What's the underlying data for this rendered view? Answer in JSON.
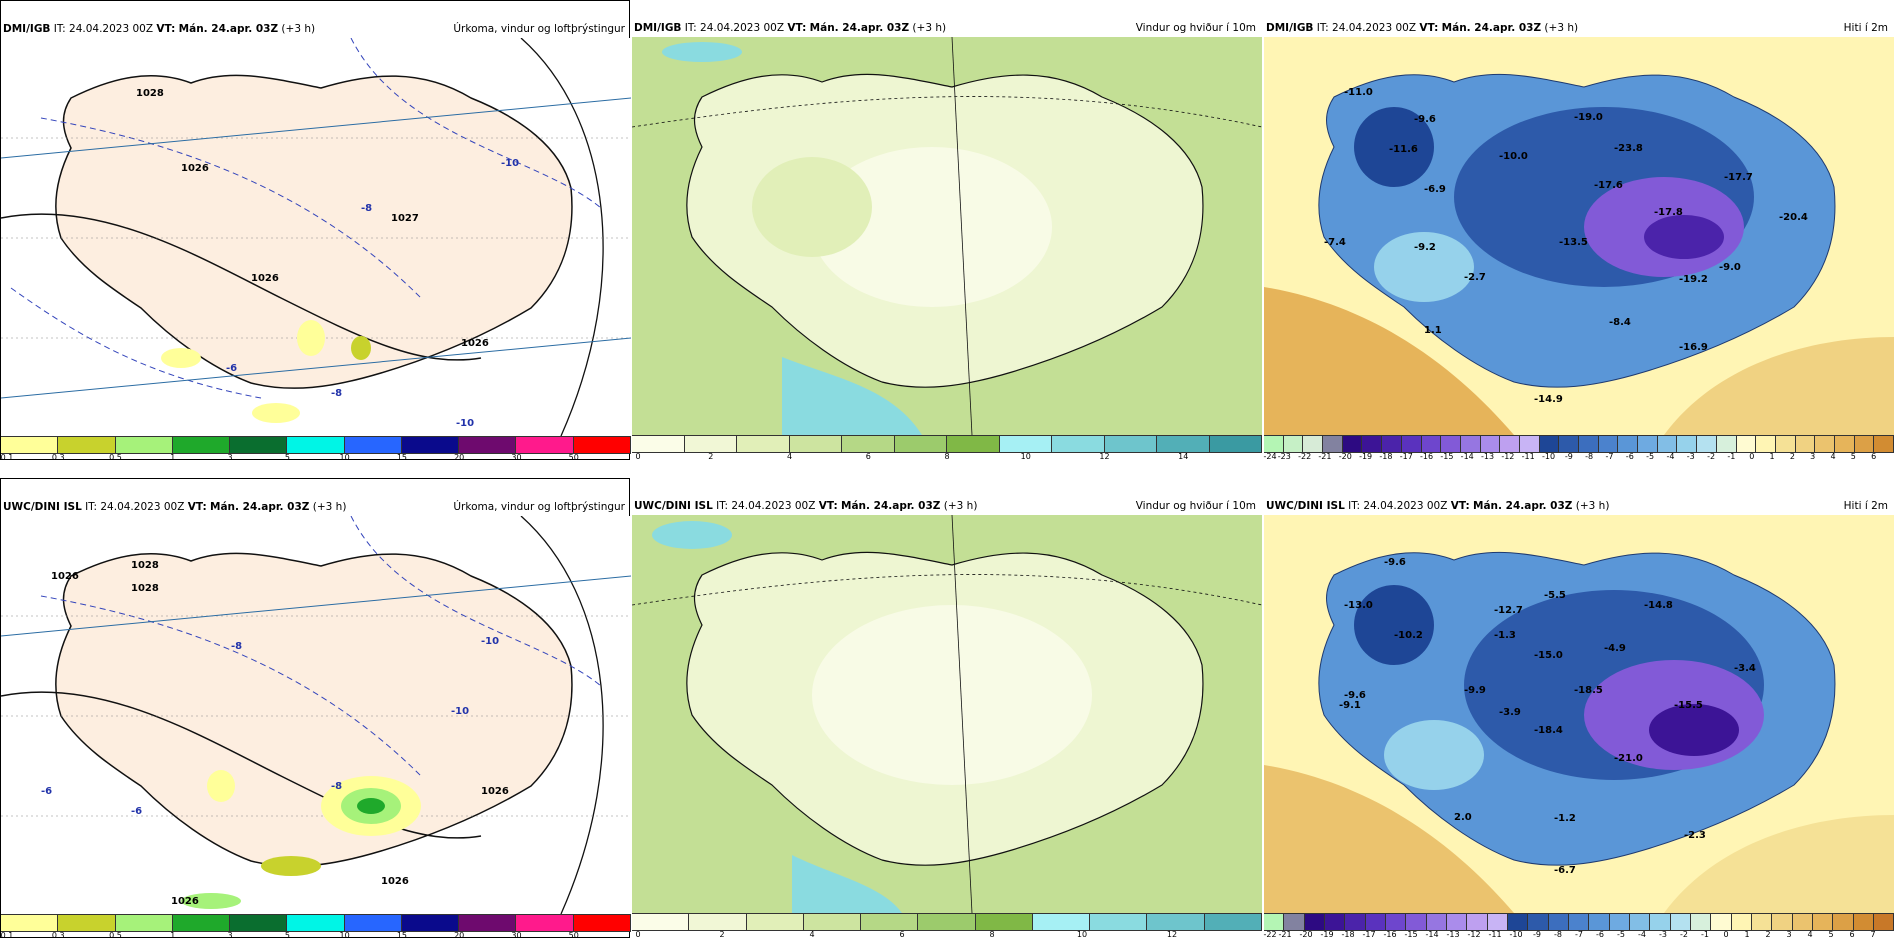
{
  "panels": [
    {
      "id": "p1",
      "model": "DMI/IGB",
      "it_label": "IT:",
      "it_value": "24.04.2023 00Z",
      "vt_label": "VT:",
      "vt_value": "Mán. 24.apr. 03Z",
      "lead": "(+3 h)",
      "product": "Úrkoma, vindur og loftþrýstingur",
      "scale_colors": [
        "#ffff99",
        "#c8d22d",
        "#a6f27a",
        "#1fa92b",
        "#0a6e2f",
        "#00f5e6",
        "#2766ff",
        "#0a0a8c",
        "#6e0a6e",
        "#ff1a8c",
        "#ff0000"
      ],
      "scale_labels": [
        "0.1",
        "0.3",
        "0.5",
        "1",
        "3",
        "5",
        "10",
        "15",
        "20",
        "30",
        "50"
      ],
      "map_labels": [
        "1028",
        "1027",
        "-8",
        "-10",
        "-10",
        "-6",
        "-8",
        "1026",
        "1026",
        "1026"
      ]
    },
    {
      "id": "p2",
      "model": "DMI/IGB",
      "it_label": "IT:",
      "it_value": "24.04.2023 00Z",
      "vt_label": "VT:",
      "vt_value": "Mán. 24.apr. 03Z",
      "lead": "(+3 h)",
      "product": "Vindur og hviður í 10m",
      "scale_colors": [
        "#fbfde8",
        "#f1f7d6",
        "#e1efb8",
        "#cde4a0",
        "#b5d886",
        "#9ccb6c",
        "#80b846",
        "#a6f0f4",
        "#8adbe0",
        "#6ec5cc",
        "#52afb7",
        "#3a9aa2"
      ],
      "scale_labels": [
        "0",
        "2",
        "4",
        "6",
        "8",
        "10",
        "12",
        "14"
      ],
      "map_labels": []
    },
    {
      "id": "p3",
      "model": "DMI/IGB",
      "it_label": "IT:",
      "it_value": "24.04.2023 00Z",
      "vt_label": "VT:",
      "vt_value": "Mán. 24.apr. 03Z",
      "lead": "(+3 h)",
      "product": "Hiti í 2m",
      "scale_colors": [
        "#b4f5b4",
        "#c6f0c6",
        "#d7ebd7",
        "#8282a0",
        "#2d0a82",
        "#3c1496",
        "#4b23aa",
        "#5a32be",
        "#6e46cd",
        "#825ad7",
        "#9676e1",
        "#aa8ceb",
        "#bea0f0",
        "#c8b4f5",
        "#1e4696",
        "#2d5aaa",
        "#3c6ebe",
        "#4b82cd",
        "#5a96d7",
        "#6eaae1",
        "#82bee6",
        "#96d2eb",
        "#b4e1f0",
        "#d7f0dc",
        "#fffbd2",
        "#fff5b4",
        "#f5e196",
        "#f0d282",
        "#ebc36e",
        "#e6b45a",
        "#dca046",
        "#d28c32"
      ],
      "scale_labels": [
        "-24",
        "-23",
        "-22",
        "-21",
        "-20",
        "-19",
        "-18",
        "-17",
        "-16",
        "-15",
        "-14",
        "-13",
        "-12",
        "-11",
        "-10",
        "-9",
        "-8",
        "-7",
        "-6",
        "-5",
        "-4",
        "-3",
        "-2",
        "-1",
        "0",
        "1",
        "2",
        "3",
        "4",
        "5",
        "6"
      ],
      "map_labels": [
        "-11.0",
        "-9.6",
        "-11.6",
        "-6.9",
        "-10.0",
        "-19.0",
        "-23.8",
        "-17.6",
        "-17.7",
        "-17.8",
        "-20.4",
        "-7.4",
        "-9.2",
        "-13.5",
        "-2.7",
        "-19.2",
        "-9.0",
        "-8.4",
        "1.1",
        "-16.9",
        "-14.9"
      ]
    },
    {
      "id": "p4",
      "model": "UWC/DINI ISL",
      "it_label": "IT:",
      "it_value": "24.04.2023 00Z",
      "vt_label": "VT:",
      "vt_value": "Mán. 24.apr. 03Z",
      "lead": "(+3 h)",
      "product": "Úrkoma, vindur og loftþrýstingur",
      "scale_colors": [
        "#ffff99",
        "#c8d22d",
        "#a6f27a",
        "#1fa92b",
        "#0a6e2f",
        "#00f5e6",
        "#2766ff",
        "#0a0a8c",
        "#6e0a6e",
        "#ff1a8c",
        "#ff0000"
      ],
      "scale_labels": [
        "0.1",
        "0.3",
        "0.5",
        "1",
        "3",
        "5",
        "10",
        "15",
        "20",
        "30",
        "50"
      ],
      "map_labels": [
        "1026",
        "1028",
        "1028",
        "-8",
        "-10",
        "-10",
        "-6",
        "-8",
        "1026",
        "1026",
        "1026",
        "-6"
      ]
    },
    {
      "id": "p5",
      "model": "UWC/DINI ISL",
      "it_label": "IT:",
      "it_value": "24.04.2023 00Z",
      "vt_label": "VT:",
      "vt_value": "Mán. 24.apr. 03Z",
      "lead": "(+3 h)",
      "product": "Vindur og hviður í 10m",
      "scale_colors": [
        "#fbfde8",
        "#f1f7d6",
        "#e1efb8",
        "#cde4a0",
        "#b5d886",
        "#9ccb6c",
        "#80b846",
        "#a6f0f4",
        "#8adbe0",
        "#6ec5cc",
        "#52afb7"
      ],
      "scale_labels": [
        "0",
        "2",
        "4",
        "6",
        "8",
        "10",
        "12"
      ],
      "map_labels": []
    },
    {
      "id": "p6",
      "model": "UWC/DINI ISL",
      "it_label": "IT:",
      "it_value": "24.04.2023 00Z",
      "vt_label": "VT:",
      "vt_value": "Mán. 24.apr. 03Z",
      "lead": "(+3 h)",
      "product": "Hiti í 2m",
      "scale_colors": [
        "#b4f5b4",
        "#8282a0",
        "#2d0a82",
        "#3c1496",
        "#4b23aa",
        "#5a32be",
        "#6e46cd",
        "#825ad7",
        "#9676e1",
        "#aa8ceb",
        "#bea0f0",
        "#c8b4f5",
        "#1e4696",
        "#2d5aaa",
        "#3c6ebe",
        "#4b82cd",
        "#5a96d7",
        "#6eaae1",
        "#82bee6",
        "#96d2eb",
        "#b4e1f0",
        "#d7f0dc",
        "#fffbd2",
        "#fff5b4",
        "#f5e196",
        "#f0d282",
        "#ebc36e",
        "#e6b45a",
        "#dca046",
        "#d28c32",
        "#c87828"
      ],
      "scale_labels": [
        "-22",
        "-21",
        "-20",
        "-19",
        "-18",
        "-17",
        "-16",
        "-15",
        "-14",
        "-13",
        "-12",
        "-11",
        "-10",
        "-9",
        "-8",
        "-7",
        "-6",
        "-5",
        "-4",
        "-3",
        "-2",
        "-1",
        "0",
        "1",
        "2",
        "3",
        "4",
        "5",
        "6",
        "7"
      ],
      "map_labels": [
        "-9.6",
        "-13.0",
        "-10.2",
        "-5.5",
        "-12.7",
        "-14.8",
        "-1.3",
        "-15.0",
        "-4.9",
        "-3.4",
        "-9.6",
        "-9.9",
        "-18.5",
        "-15.5",
        "-9.1",
        "-3.9",
        "-18.4",
        "-21.0",
        "2.0",
        "-1.2",
        "-2.3",
        "-6.7"
      ]
    }
  ]
}
